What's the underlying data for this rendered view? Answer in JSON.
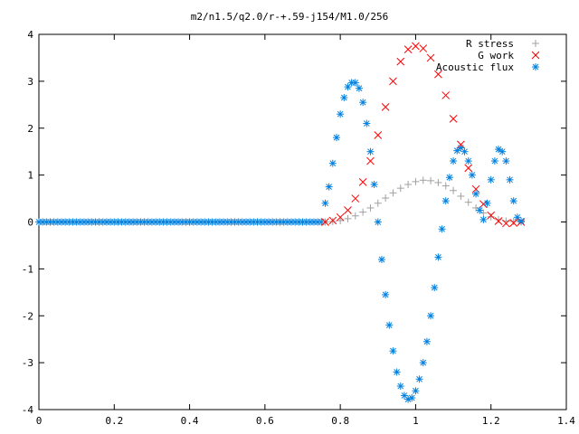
{
  "chart_data": {
    "type": "scatter",
    "title": "m2/n1.5/q2.0/r-+.59-j154/M1.0/256",
    "xlabel": "",
    "ylabel": "",
    "xlim": [
      0,
      1.4
    ],
    "ylim": [
      -4,
      4
    ],
    "xticks": [
      0,
      0.2,
      0.4,
      0.6,
      0.8,
      1,
      1.2,
      1.4
    ],
    "xtick_labels": [
      "0",
      "0.2",
      "0.4",
      "0.6",
      "0.8",
      "1",
      "1.2",
      "1.4"
    ],
    "yticks": [
      -4,
      -3,
      -2,
      -1,
      0,
      1,
      2,
      3,
      4
    ],
    "ytick_labels": [
      "-4",
      "-3",
      "-2",
      "-1",
      "0",
      "1",
      "2",
      "3",
      "4"
    ],
    "grid": false,
    "legend_position": "top-right",
    "series": [
      {
        "name": "R stress",
        "marker": "+",
        "color": "#a0a0a0",
        "x": [
          0.76,
          0.78,
          0.8,
          0.82,
          0.84,
          0.86,
          0.88,
          0.9,
          0.92,
          0.94,
          0.96,
          0.98,
          1.0,
          1.02,
          1.04,
          1.06,
          1.08,
          1.1,
          1.12,
          1.14,
          1.16,
          1.18,
          1.2,
          1.22,
          1.24,
          1.26,
          1.28
        ],
        "y": [
          0.0,
          0.01,
          0.03,
          0.07,
          0.13,
          0.21,
          0.3,
          0.4,
          0.51,
          0.62,
          0.72,
          0.8,
          0.86,
          0.89,
          0.88,
          0.84,
          0.77,
          0.67,
          0.55,
          0.42,
          0.3,
          0.19,
          0.11,
          0.05,
          0.02,
          0.01,
          0.0
        ]
      },
      {
        "name": "G work",
        "marker": "x",
        "color": "#ff0000",
        "x": [
          0.76,
          0.78,
          0.8,
          0.82,
          0.84,
          0.86,
          0.88,
          0.9,
          0.92,
          0.94,
          0.96,
          0.98,
          1.0,
          1.02,
          1.04,
          1.06,
          1.08,
          1.1,
          1.12,
          1.14,
          1.16,
          1.18,
          1.2,
          1.22,
          1.24,
          1.26,
          1.28
        ],
        "y": [
          0.0,
          0.03,
          0.1,
          0.25,
          0.5,
          0.85,
          1.3,
          1.85,
          2.45,
          3.0,
          3.42,
          3.68,
          3.75,
          3.7,
          3.5,
          3.15,
          2.7,
          2.2,
          1.65,
          1.15,
          0.7,
          0.38,
          0.14,
          0.02,
          -0.03,
          -0.02,
          0.0
        ]
      },
      {
        "name": "Acoustic flux",
        "marker": "*",
        "color": "#0080e0",
        "x": [
          0.76,
          0.77,
          0.78,
          0.79,
          0.8,
          0.81,
          0.82,
          0.83,
          0.84,
          0.85,
          0.86,
          0.87,
          0.88,
          0.89,
          0.9,
          0.91,
          0.92,
          0.93,
          0.94,
          0.95,
          0.96,
          0.97,
          0.98,
          0.99,
          1.0,
          1.01,
          1.02,
          1.03,
          1.04,
          1.05,
          1.06,
          1.07,
          1.08,
          1.09,
          1.1,
          1.11,
          1.12,
          1.13,
          1.14,
          1.15,
          1.16,
          1.17,
          1.18,
          1.19,
          1.2,
          1.21,
          1.22,
          1.23,
          1.24,
          1.25,
          1.26,
          1.27,
          1.28
        ],
        "y": [
          0.4,
          0.75,
          1.25,
          1.8,
          2.3,
          2.65,
          2.88,
          2.97,
          2.97,
          2.85,
          2.55,
          2.1,
          1.5,
          0.8,
          0.0,
          -0.8,
          -1.55,
          -2.2,
          -2.75,
          -3.2,
          -3.5,
          -3.7,
          -3.78,
          -3.75,
          -3.6,
          -3.35,
          -3.0,
          -2.55,
          -2.0,
          -1.4,
          -0.75,
          -0.15,
          0.45,
          0.95,
          1.3,
          1.52,
          1.58,
          1.5,
          1.3,
          1.0,
          0.6,
          0.25,
          0.05,
          0.4,
          0.9,
          1.3,
          1.55,
          1.5,
          1.3,
          0.9,
          0.45,
          0.1,
          0.02
        ]
      }
    ]
  }
}
